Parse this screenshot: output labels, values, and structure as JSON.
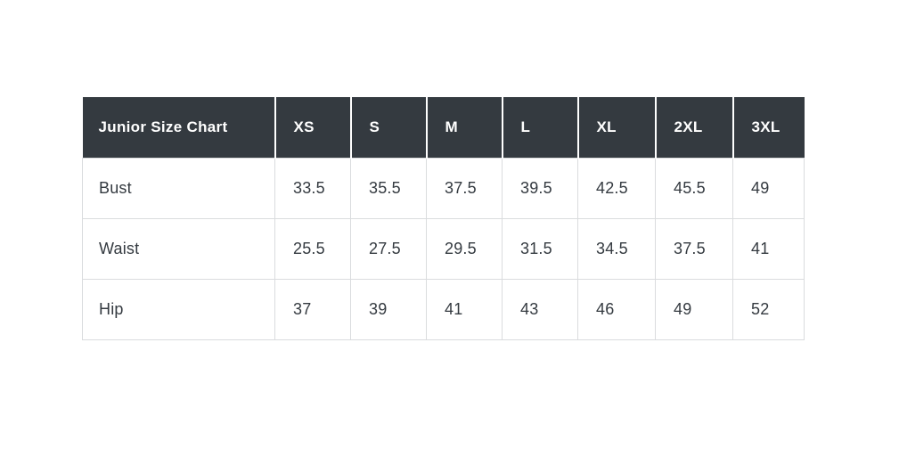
{
  "chart_data": {
    "type": "table",
    "title": "Junior Size Chart",
    "columns": [
      "XS",
      "S",
      "M",
      "L",
      "XL",
      "2XL",
      "3XL"
    ],
    "rows": [
      {
        "label": "Bust",
        "values": [
          "33.5",
          "35.5",
          "37.5",
          "39.5",
          "42.5",
          "45.5",
          "49"
        ]
      },
      {
        "label": "Waist",
        "values": [
          "25.5",
          "27.5",
          "29.5",
          "31.5",
          "34.5",
          "37.5",
          "41"
        ]
      },
      {
        "label": "Hip",
        "values": [
          "37",
          "39",
          "41",
          "43",
          "46",
          "49",
          "52"
        ]
      }
    ],
    "layout": {
      "legend": "none",
      "grid": "cell-borders"
    },
    "colors": {
      "header_background": "#343a40",
      "header_text": "#ffffff",
      "body_text": "#343a40",
      "cell_border": "#dadcde",
      "header_separator": "#ffffff",
      "page_background": "#ffffff"
    }
  }
}
